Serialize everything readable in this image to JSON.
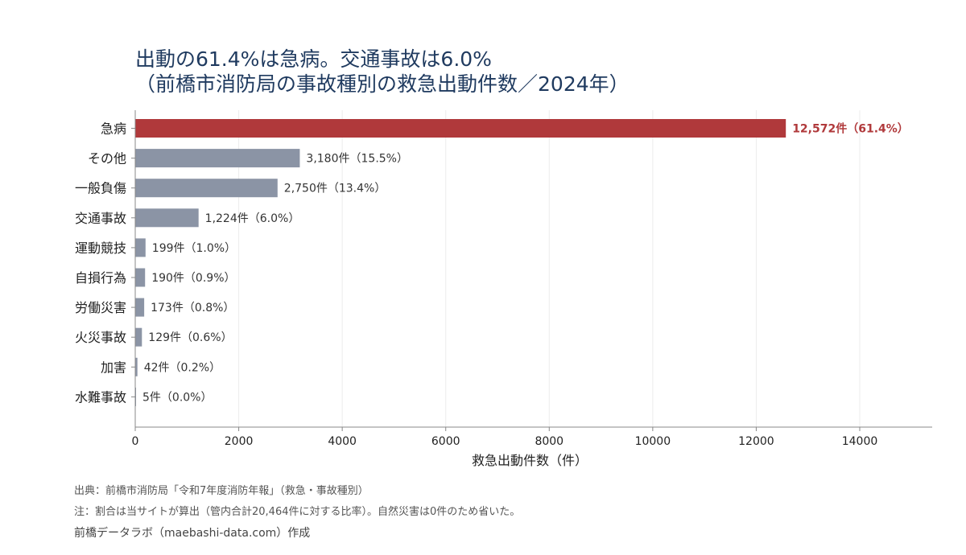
{
  "title": {
    "line1": "出動の61.4%は急病。交通事故は6.0%",
    "line2": "（前橋市消防局の事故種別の救急出動件数／2024年）"
  },
  "chart_data": {
    "type": "bar",
    "orientation": "horizontal",
    "categories": [
      "急病",
      "その他",
      "一般負傷",
      "交通事故",
      "運動競技",
      "自損行為",
      "労働災害",
      "火災事故",
      "加害",
      "水難事故"
    ],
    "values": [
      12572,
      3180,
      2750,
      1224,
      199,
      190,
      173,
      129,
      42,
      5
    ],
    "data_labels": [
      "12,572件（61.4%）",
      "3,180件（15.5%）",
      "2,750件（13.4%）",
      "1,224件（6.0%）",
      "199件（1.0%）",
      "190件（0.9%）",
      "173件（0.8%）",
      "129件（0.6%）",
      "42件（0.2%）",
      "5件（0.0%）"
    ],
    "highlight_index": 0,
    "xlabel": "救急出動件数（件）",
    "ylabel": "",
    "xlim": [
      0,
      15400
    ],
    "xticks": [
      0,
      2000,
      4000,
      6000,
      8000,
      10000,
      12000,
      14000
    ],
    "grid": "vertical"
  },
  "colors": {
    "highlight": "#b0393b",
    "bar": "#8b94a5",
    "title": "#1f3a5f",
    "grid": "#ececec",
    "axis": "#888888"
  },
  "notes": {
    "source": "出典：前橋市消防局「令和7年度消防年報」（救急・事故種別）",
    "note": "注：割合は当サイトが算出（管内合計20,464件に対する比率）。自然災害は0件のため省いた。",
    "credit": "前橋データラボ（maebashi-data.com）作成"
  }
}
